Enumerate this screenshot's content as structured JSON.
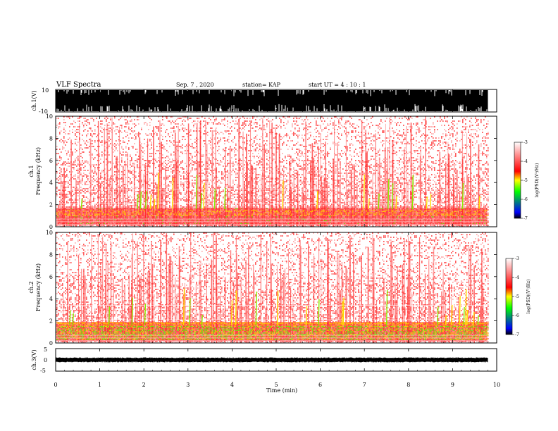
{
  "header": {
    "title": "VLF Spectra",
    "date": "Sep. 7 , 2020",
    "station": "station= KAP",
    "start": "start  UT =   4 : 10 : 1"
  },
  "chart_data": [
    {
      "type": "line",
      "ylabel": "ch.1(V)",
      "ylim": [
        -10,
        10
      ],
      "yticks": [
        "10",
        "-10"
      ]
    },
    {
      "type": "heatmap",
      "ylabel_top": "ch.1",
      "ylabel": "Frequency (kHz)",
      "ylim": [
        0,
        10
      ],
      "yticks": [
        "0",
        "2",
        "4",
        "6",
        "8",
        "10"
      ],
      "colorbar": {
        "label": "log(PSD)(V²/Hz)",
        "range": [
          -7,
          -3
        ],
        "ticks": [
          "-3",
          "-4",
          "-5",
          "-6",
          "-7"
        ],
        "colors": [
          "#000000",
          "#0000ff",
          "#00ff00",
          "#ffff00",
          "#ff0000",
          "#ffffff"
        ]
      }
    },
    {
      "type": "heatmap",
      "ylabel_top": "ch.2",
      "ylabel": "Frequency (kHz)",
      "ylim": [
        0,
        10
      ],
      "yticks": [
        "0",
        "2",
        "4",
        "6",
        "8",
        "10"
      ],
      "colorbar": {
        "label": "log(PSD)(V²/Hz)",
        "range": [
          -7,
          -3
        ],
        "ticks": [
          "-3",
          "-4",
          "-5",
          "-6",
          "-7"
        ],
        "colors": [
          "#000000",
          "#0000ff",
          "#00ff00",
          "#ffff00",
          "#ff0000",
          "#ffffff"
        ]
      }
    },
    {
      "type": "line",
      "ylabel": "ch.3(V)",
      "ylim": [
        -5,
        5
      ],
      "yticks": [
        "5",
        "0",
        "-5"
      ]
    }
  ],
  "xaxis": {
    "label": "Time  (min)",
    "ticks": [
      "0",
      "1",
      "2",
      "3",
      "4",
      "5",
      "6",
      "7",
      "8",
      "9",
      "10"
    ],
    "xlim": [
      0,
      10
    ],
    "data_end_min": 9.8
  }
}
